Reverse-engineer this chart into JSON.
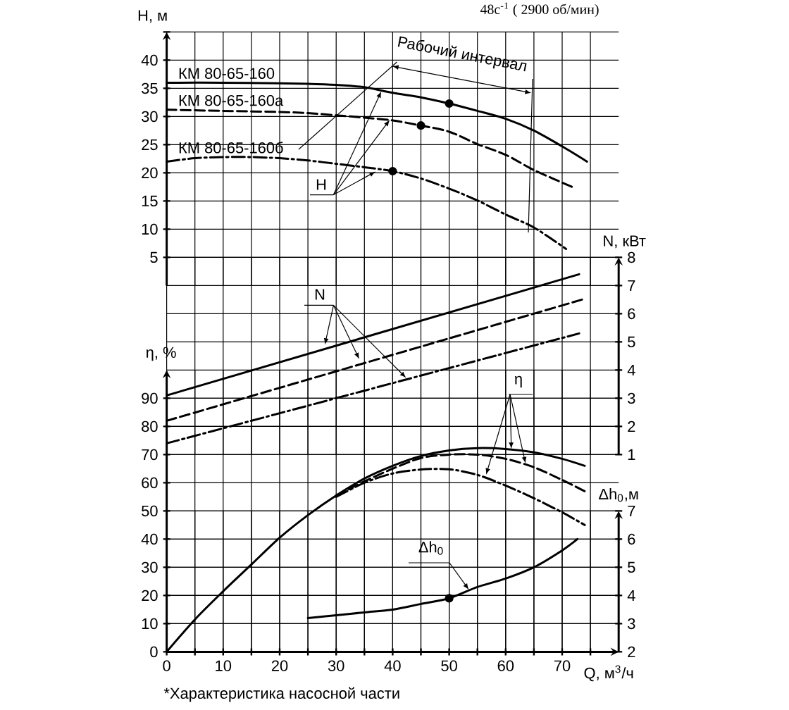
{
  "chart_data": [
    {
      "type": "line",
      "subtitle": "48с$^{-1}$ ( 2900 об/мин)",
      "ylabel": "H, м",
      "annotations": [
        "Рабочий интервал",
        {
          "text": "H",
          "x": 38,
          "y": 34.5
        }
      ],
      "xlim": [
        0,
        80
      ],
      "xticks": [
        0,
        {
          "value": 5,
          "label": null
        },
        10,
        {
          "value": 15,
          "label": null
        },
        20,
        {
          "value": 25,
          "label": null
        },
        30,
        {
          "value": 35,
          "label": null
        },
        40,
        {
          "value": 45,
          "label": null
        },
        50,
        {
          "value": 55,
          "label": null
        },
        60,
        {
          "value": 65,
          "label": null
        },
        70,
        {
          "value": 75,
          "label": null
        }
      ],
      "ylim": [
        0,
        45
      ],
      "yticks": [
        5,
        10,
        15,
        20,
        25,
        30,
        35,
        40,
        {
          "value": 45,
          "label": null
        }
      ],
      "tick_labels": "y",
      "grid": true,
      "series": [
        {
          "name": "КМ 80-65-160",
          "color": "#000000",
          "line_style": "solid",
          "x": [
            0,
            10,
            20,
            25,
            30,
            35,
            40,
            45,
            50,
            55,
            60,
            65,
            70,
            74.4
          ],
          "values": [
            36,
            36,
            35.9,
            35.8,
            35.6,
            35.2,
            34.2,
            33.4,
            32.3,
            31,
            29.6,
            27.5,
            24.7,
            22
          ]
        },
        {
          "name": "КМ 80-65-160а",
          "color": "#000000",
          "line_style": "dashed",
          "x": [
            0,
            10,
            20,
            25,
            30,
            35,
            40,
            45,
            50,
            55,
            60,
            65,
            72
          ],
          "values": [
            31.2,
            31,
            30.8,
            30.6,
            30.2,
            29.8,
            29.3,
            28.4,
            27.3,
            25.1,
            23.2,
            20.5,
            17.4
          ]
        },
        {
          "name": "КМ 80-65-160б",
          "color": "#000000",
          "line_style": "dashdot",
          "x": [
            0,
            5,
            10,
            15,
            20,
            25,
            30,
            35,
            40,
            45,
            50,
            55,
            60,
            65,
            70.7
          ],
          "values": [
            22,
            22.6,
            22.8,
            22.8,
            22.6,
            22.2,
            21.6,
            21,
            20.3,
            19,
            17.2,
            15.1,
            12.6,
            10.3,
            6.5
          ]
        },
        {
          "type": "scatter",
          "marker": "circle",
          "color": "#000000",
          "x": [
            50,
            45,
            40
          ],
          "values": [
            32.3,
            28.4,
            20.3
          ]
        }
      ]
    },
    {
      "type": "line",
      "ylabel": "N, кВт",
      "annotations": [
        {
          "text": "N",
          "x": 28,
          "y": 4.9
        }
      ],
      "xlim": [
        0,
        80
      ],
      "xticks": [
        0,
        {
          "value": 5,
          "label": null
        },
        10,
        {
          "value": 15,
          "label": null
        },
        20,
        {
          "value": 25,
          "label": null
        },
        30,
        {
          "value": 35,
          "label": null
        },
        40,
        {
          "value": 45,
          "label": null
        },
        50,
        {
          "value": 55,
          "label": null
        },
        60,
        {
          "value": 65,
          "label": null
        },
        70,
        {
          "value": 75,
          "label": null
        }
      ],
      "ylim": [
        1,
        8
      ],
      "yticks": [
        1,
        2,
        3,
        4,
        5,
        6,
        7,
        8
      ],
      "tick_labels": "y",
      "grid": true,
      "series": [
        {
          "color": "#000000",
          "line_style": "solid",
          "x": [
            0,
            73
          ],
          "values": [
            3.1,
            7.4
          ]
        },
        {
          "color": "#000000",
          "line_style": "dashed",
          "x": [
            0,
            73.5
          ],
          "values": [
            2.2,
            6.5
          ]
        },
        {
          "color": "#000000",
          "line_style": "dashdot",
          "x": [
            0,
            73
          ],
          "values": [
            1.4,
            5.3
          ]
        }
      ]
    },
    {
      "type": "line",
      "xlabel": "Q, м$^{3}$/ч",
      "ylabel": "η, %",
      "annotations": [
        {
          "text": "η",
          "x": 61,
          "y": 72
        },
        "*Характеристика насосной части"
      ],
      "xlim": [
        0,
        80
      ],
      "xticks": [
        0,
        {
          "value": 5,
          "label": null
        },
        10,
        {
          "value": 15,
          "label": null
        },
        20,
        {
          "value": 25,
          "label": null
        },
        30,
        {
          "value": 35,
          "label": null
        },
        40,
        {
          "value": 45,
          "label": null
        },
        50,
        {
          "value": 55,
          "label": null
        },
        60,
        {
          "value": 65,
          "label": null
        },
        70,
        {
          "value": 75,
          "label": null
        }
      ],
      "ylim": [
        0,
        100
      ],
      "yticks": [
        0,
        10,
        20,
        30,
        40,
        50,
        60,
        70,
        80,
        90
      ],
      "grid": true,
      "series": [
        {
          "color": "#000000",
          "line_style": "solid",
          "x": [
            0,
            5,
            10,
            15,
            20,
            25,
            30,
            35,
            40,
            45,
            50,
            55,
            60,
            65,
            70,
            74
          ],
          "values": [
            0,
            11.5,
            21.5,
            31,
            40.5,
            48.5,
            55.5,
            61.5,
            66,
            69.5,
            71.5,
            72.3,
            72,
            70.8,
            68.5,
            66
          ]
        },
        {
          "color": "#000000",
          "line_style": "dashed",
          "x": [
            30,
            35,
            40,
            45,
            50,
            55,
            60,
            65,
            70,
            74
          ],
          "values": [
            55.5,
            60.5,
            65,
            68.8,
            70,
            70,
            68.5,
            65.5,
            61,
            57
          ]
        },
        {
          "color": "#000000",
          "line_style": "dashdot",
          "x": [
            30,
            35,
            40,
            45,
            50,
            55,
            60,
            65,
            70,
            74
          ],
          "values": [
            55,
            60,
            63.3,
            64.7,
            64.8,
            62.8,
            59,
            54.5,
            49.5,
            45
          ]
        }
      ]
    },
    {
      "type": "line",
      "ylabel": "Δh$_{0}$,м",
      "annotations": [
        {
          "text": "Δh$_{0}$",
          "x": 53.5,
          "y": 4.2
        }
      ],
      "xlim": [
        0,
        80
      ],
      "xticks": [
        0,
        {
          "value": 5,
          "label": null
        },
        10,
        {
          "value": 15,
          "label": null
        },
        20,
        {
          "value": 25,
          "label": null
        },
        30,
        {
          "value": 35,
          "label": null
        },
        40,
        {
          "value": 45,
          "label": null
        },
        50,
        {
          "value": 55,
          "label": null
        },
        60,
        {
          "value": 65,
          "label": null
        },
        70,
        {
          "value": 75,
          "label": null
        }
      ],
      "ylim": [
        2,
        7
      ],
      "yticks": [
        2,
        3,
        4,
        5,
        6,
        7
      ],
      "tick_labels": "y",
      "grid": true,
      "series": [
        {
          "color": "#000000",
          "line_style": "solid",
          "x": [
            25,
            30,
            35,
            40,
            45,
            50,
            55,
            60,
            65,
            70,
            72.7
          ],
          "values": [
            3.2,
            3.3,
            3.4,
            3.5,
            3.7,
            3.9,
            4.3,
            4.6,
            5,
            5.6,
            6
          ]
        },
        {
          "type": "scatter",
          "marker": "circle",
          "color": "#000000",
          "x": [
            50
          ],
          "values": [
            3.9
          ]
        }
      ]
    }
  ]
}
